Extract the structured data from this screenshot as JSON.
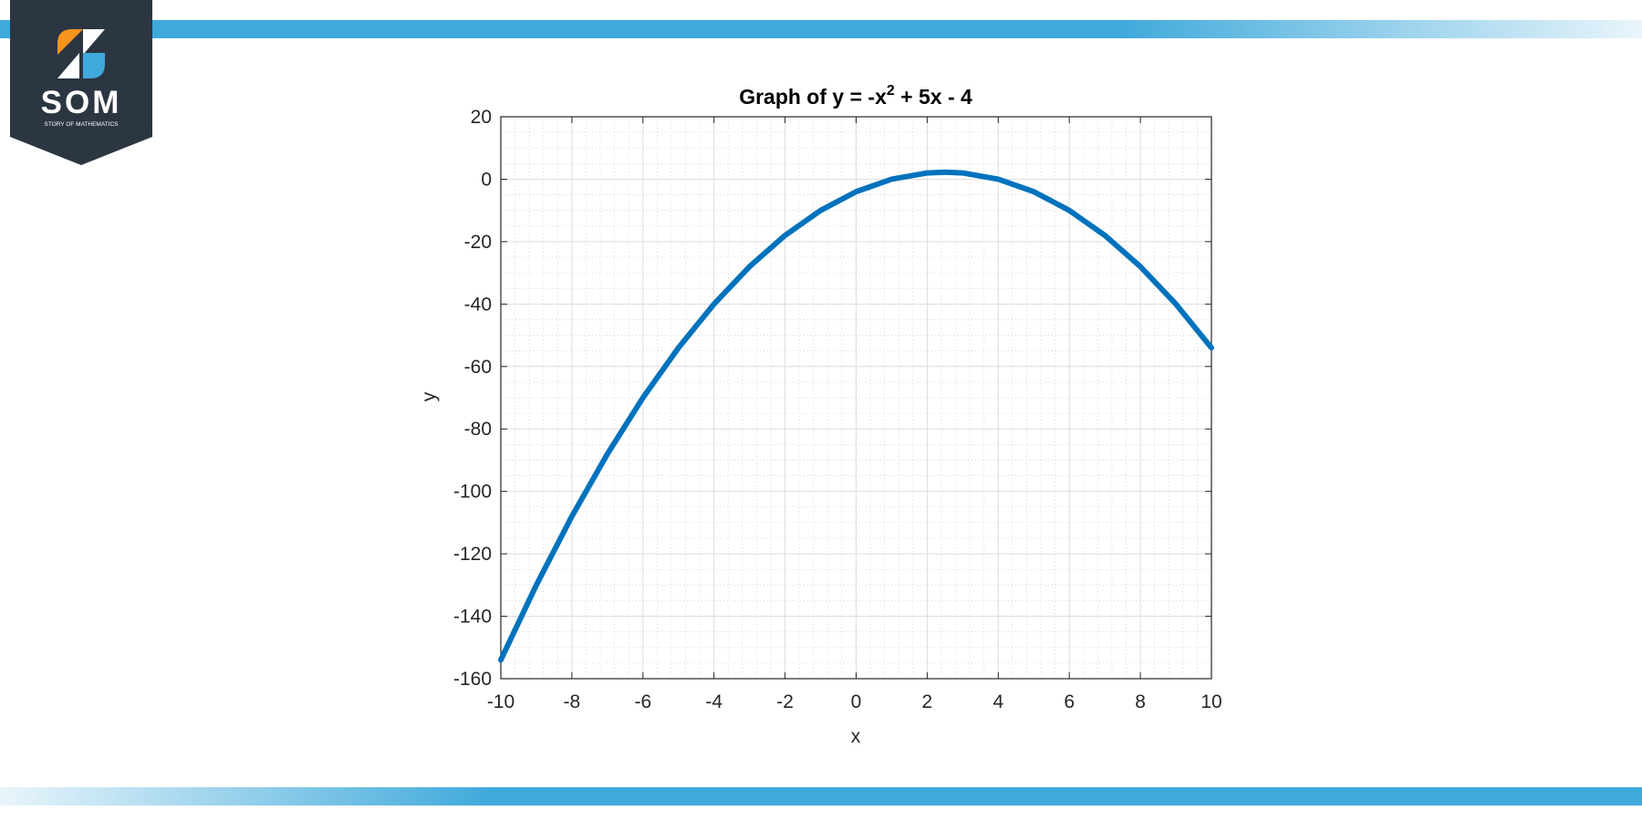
{
  "brand": {
    "name": "SOM",
    "tagline": "STORY OF MATHEMATICS",
    "colors": {
      "badge": "#2b3642",
      "orange": "#f7941d",
      "blue": "#3fa9db",
      "band": "#3fa9db"
    }
  },
  "chart_data": {
    "type": "line",
    "title_main": "Graph of y = -x",
    "title_sup": "2",
    "title_rest": " + 5x - 4",
    "xlabel": "x",
    "ylabel": "y",
    "xlim": [
      -10,
      10
    ],
    "ylim": [
      -160,
      20
    ],
    "xticks": [
      "-10",
      "-8",
      "-6",
      "-4",
      "-2",
      "0",
      "2",
      "4",
      "6",
      "8",
      "10"
    ],
    "yticks": [
      "20",
      "0",
      "-20",
      "-40",
      "-60",
      "-80",
      "-100",
      "-120",
      "-140",
      "-160"
    ],
    "grid": true,
    "minor_grid": true,
    "series": [
      {
        "color": "#0072bd",
        "x": [
          -10,
          -9,
          -8,
          -7,
          -6,
          -5,
          -4,
          -3,
          -2,
          -1,
          0,
          1,
          2,
          2.5,
          3,
          4,
          5,
          6,
          7,
          8,
          9,
          10
        ],
        "y": [
          -154,
          -130,
          -108,
          -88,
          -70,
          -54,
          -40,
          -28,
          -18,
          -10,
          -4,
          0,
          2,
          2.25,
          2,
          0,
          -4,
          -10,
          -18,
          -28,
          -40,
          -54
        ]
      }
    ]
  }
}
